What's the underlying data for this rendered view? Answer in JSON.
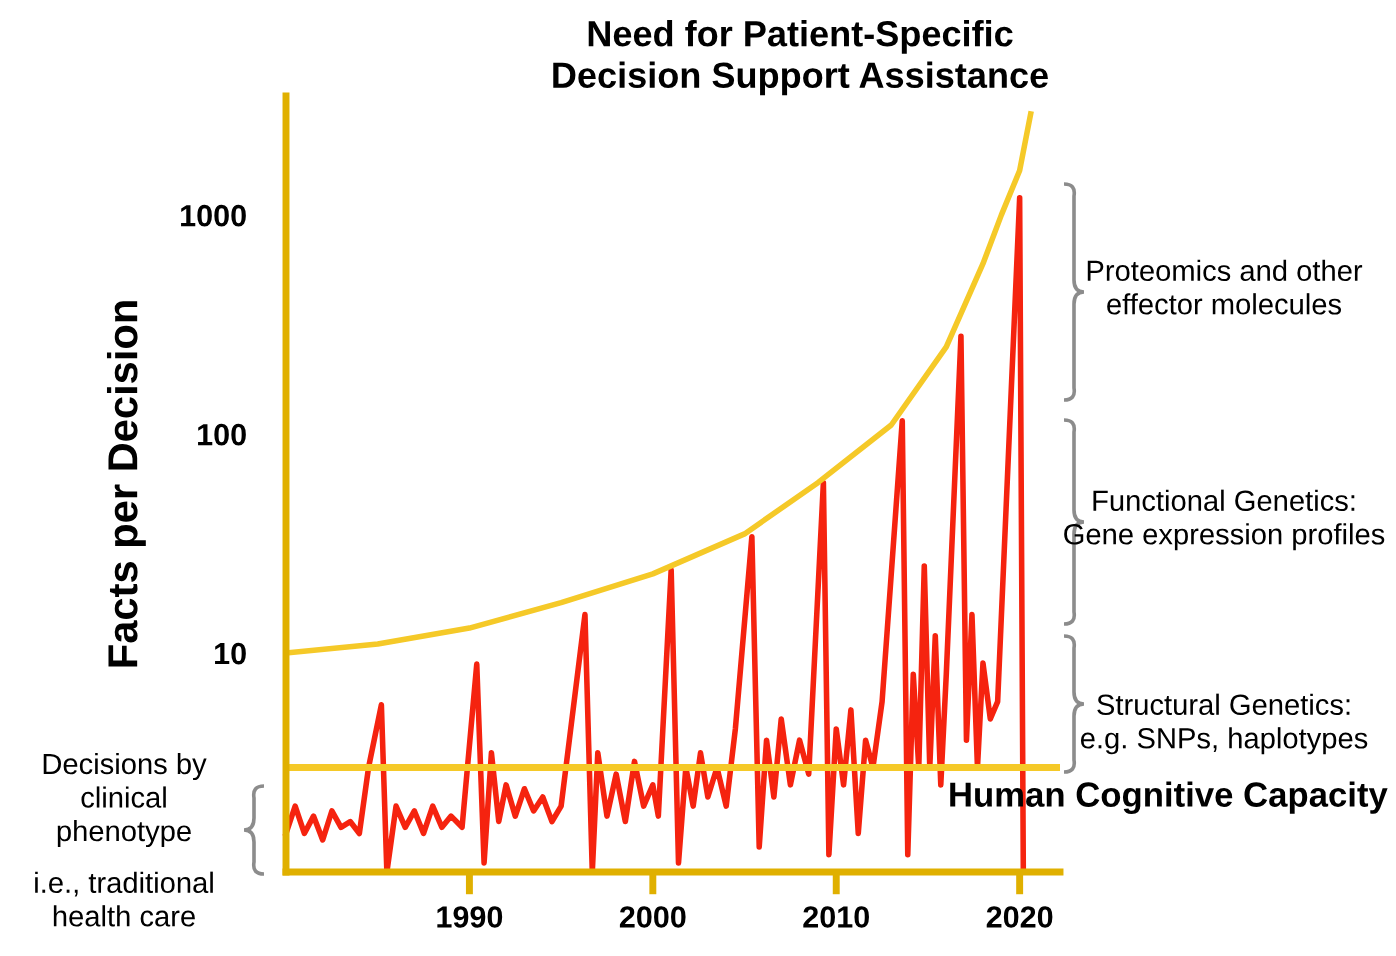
{
  "chart_data": {
    "type": "line",
    "title": "Need for Patient-Specific\nDecision Support Assistance",
    "ylabel": "Facts per Decision",
    "log": "y",
    "xlim": [
      1980,
      2022.2
    ],
    "xticks": [
      1990,
      2000,
      2010,
      2020
    ],
    "ylim": [
      1,
      3500
    ],
    "yticks": [
      10,
      100,
      1000
    ],
    "grid": false,
    "series": [
      {
        "color": "#f5230f",
        "x": [
          1980,
          1980.5,
          1981,
          1981.5,
          1982,
          1982.5,
          1983,
          1983.5,
          1984,
          1984.5,
          1985.2,
          1985.5,
          1986,
          1986.5,
          1987,
          1987.5,
          1988,
          1988.5,
          1989,
          1989.6,
          1990.4,
          1990.8,
          1991.2,
          1991.6,
          1992,
          1992.5,
          1993,
          1993.5,
          1994,
          1994.5,
          1995,
          1996.3,
          1996.7,
          1997,
          1997.5,
          1998,
          1998.5,
          1999,
          1999.5,
          2000,
          2000.3,
          2001,
          2001.4,
          2001.8,
          2002.2,
          2002.6,
          2003,
          2003.5,
          2004,
          2004.5,
          2005.4,
          2005.8,
          2006.2,
          2006.6,
          2007,
          2007.5,
          2008,
          2008.5,
          2009.3,
          2009.6,
          2010,
          2010.4,
          2010.8,
          2011.2,
          2011.6,
          2012,
          2012.5,
          2013.6,
          2013.9,
          2014.2,
          2014.5,
          2014.8,
          2015.1,
          2015.4,
          2015.7,
          2016,
          2016.8,
          2017.1,
          2017.4,
          2017.7,
          2018,
          2018.4,
          2018.8,
          2020,
          2020.2
        ],
        "values": [
          1.5,
          2.0,
          1.5,
          1.8,
          1.4,
          1.9,
          1.6,
          1.7,
          1.5,
          3,
          5.8,
          1.0,
          2.0,
          1.6,
          1.9,
          1.5,
          2.0,
          1.6,
          1.8,
          1.6,
          8.9,
          1.1,
          3.5,
          1.7,
          2.5,
          1.8,
          2.4,
          1.9,
          2.2,
          1.7,
          2.0,
          15,
          1.0,
          3.5,
          1.8,
          2.8,
          1.7,
          3.2,
          2.0,
          2.5,
          1.8,
          24,
          1.1,
          3.0,
          2.0,
          3.5,
          2.2,
          3.0,
          2.0,
          4.5,
          34,
          1.3,
          4.0,
          2.2,
          5.0,
          2.5,
          4.0,
          2.8,
          60,
          1.2,
          4.5,
          2.5,
          5.5,
          1.5,
          4.0,
          3.0,
          6,
          115,
          1.2,
          8,
          3,
          25,
          3,
          12,
          2.5,
          8,
          280,
          4,
          15,
          3,
          9,
          5,
          6,
          1200,
          1.0
        ]
      },
      {
        "color": "#f5c928",
        "x": [
          1980,
          1985,
          1990,
          1995,
          2000,
          2005,
          2009,
          2013,
          2016,
          2018,
          2019,
          2020,
          2020.6
        ],
        "values": [
          10,
          11,
          13,
          17,
          23,
          35,
          60,
          110,
          250,
          600,
          1000,
          1600,
          2900
        ]
      }
    ],
    "ref_lines": [
      {
        "axis": "y",
        "value": 3,
        "label": "Human Cognitive Capacity",
        "color": "#f5c928"
      }
    ],
    "annotations": [
      "Proteomics and other\neffector molecules",
      "Functional Genetics:\nGene expression profiles",
      "Structural Genetics:\ne.g. SNPs, haplotypes",
      "Decisions by\nclinical\nphenotype",
      "i.e., traditional\nhealth care"
    ]
  }
}
